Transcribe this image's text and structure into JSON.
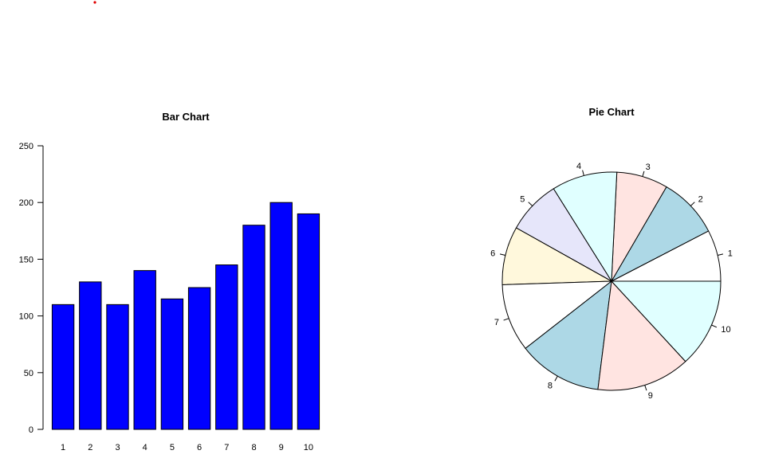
{
  "chart_data": [
    {
      "type": "bar",
      "title": "Bar Chart",
      "categories": [
        "1",
        "2",
        "3",
        "4",
        "5",
        "6",
        "7",
        "8",
        "9",
        "10"
      ],
      "values": [
        110,
        130,
        110,
        140,
        115,
        125,
        145,
        180,
        200,
        190
      ],
      "ylim": [
        0,
        250
      ],
      "yticks": [
        0,
        50,
        100,
        150,
        200,
        250
      ],
      "xlabel": "",
      "ylabel": "",
      "bar_color": "#0000ff",
      "grid": false
    },
    {
      "type": "pie",
      "title": "Pie Chart",
      "labels": [
        "1",
        "2",
        "3",
        "4",
        "5",
        "6",
        "7",
        "8",
        "9",
        "10"
      ],
      "values": [
        110,
        130,
        110,
        140,
        115,
        125,
        145,
        180,
        200,
        190
      ],
      "colors": [
        "#ffffff",
        "#add8e6",
        "#ffe4e1",
        "#e0ffff",
        "#e6e6fa",
        "#fff8dc",
        "#ffffff",
        "#add8e6",
        "#ffe4e1",
        "#e0ffff"
      ]
    }
  ],
  "marker_color": "#e00000"
}
